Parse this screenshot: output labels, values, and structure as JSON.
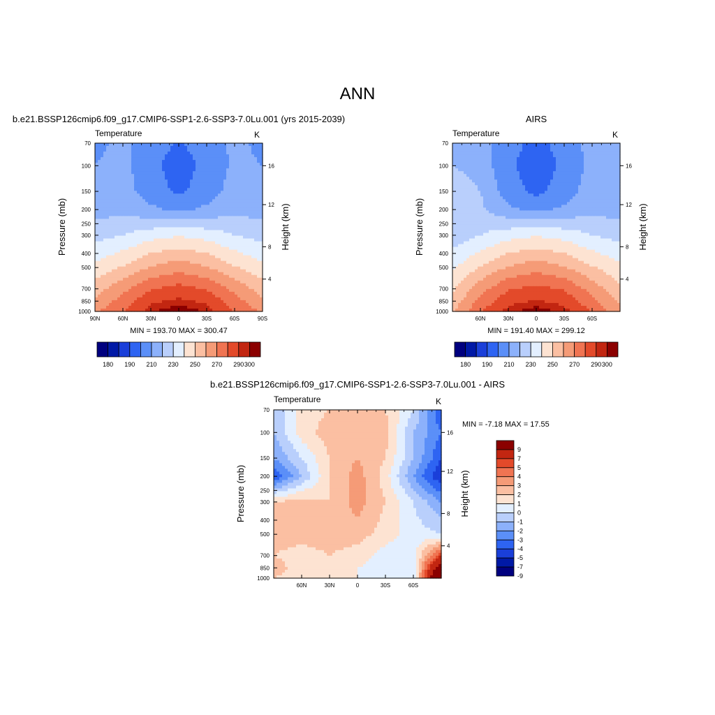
{
  "figure": {
    "title": "ANN",
    "contour_colors": [
      "#00007f",
      "#0019a6",
      "#1a3fd9",
      "#2e64f2",
      "#5b8ff8",
      "#8cb1fb",
      "#b9cffc",
      "#e3efff",
      "#fde3d2",
      "#fbbfa2",
      "#f59b77",
      "#f07452",
      "#e34a2a",
      "#c22611",
      "#8b0000"
    ]
  },
  "panels": {
    "model": {
      "title": "b.e21.BSSP126cmip6.f09_g17.CMIP6-SSP1-2.6-SSP3-7.0Lu.001 (yrs 2015-2039)",
      "var_label": "Temperature",
      "units": "K",
      "stats": "MIN = 193.70  MAX = 300.47",
      "ylabel_left": "Pressure (mb)",
      "ylabel_right": "Height (km)",
      "pressure_ticks": [
        "70",
        "100",
        "150",
        "200",
        "250",
        "300",
        "400",
        "500",
        "700",
        "850",
        "1000"
      ],
      "height_ticks": [
        "16",
        "12",
        "8",
        "4"
      ],
      "lat_ticks": [
        "90N",
        "60N",
        "30N",
        "0",
        "30S",
        "60S",
        "90S"
      ],
      "colorbar_labels": [
        "180",
        "190",
        "210",
        "230",
        "250",
        "270",
        "290",
        "300"
      ]
    },
    "obs": {
      "title": "AIRS",
      "var_label": "Temperature",
      "units": "K",
      "stats": "MIN = 191.40  MAX = 299.12",
      "ylabel_left": "Pressure (mb)",
      "ylabel_right": "Height (km)",
      "pressure_ticks": [
        "70",
        "100",
        "150",
        "200",
        "250",
        "300",
        "400",
        "500",
        "700",
        "850",
        "1000"
      ],
      "height_ticks": [
        "16",
        "12",
        "8",
        "4"
      ],
      "lat_ticks": [
        "60N",
        "30N",
        "0",
        "30S",
        "60S"
      ],
      "colorbar_labels": [
        "180",
        "190",
        "210",
        "230",
        "250",
        "270",
        "290",
        "300"
      ]
    },
    "diff": {
      "title": "b.e21.BSSP126cmip6.f09_g17.CMIP6-SSP1-2.6-SSP3-7.0Lu.001 - AIRS",
      "var_label": "Temperature",
      "units": "K",
      "stats": "MIN =  -7.18  MAX =  17.55",
      "ylabel_left": "Pressure (mb)",
      "ylabel_right": "Height (km)",
      "pressure_ticks": [
        "70",
        "100",
        "150",
        "200",
        "250",
        "300",
        "400",
        "500",
        "700",
        "850",
        "1000"
      ],
      "height_ticks": [
        "16",
        "12",
        "8",
        "4"
      ],
      "lat_ticks": [
        "60N",
        "30N",
        "0",
        "30S",
        "60S"
      ],
      "colorbar_labels": [
        "9",
        "7",
        "5",
        "4",
        "3",
        "2",
        "1",
        "0",
        "-1",
        "-2",
        "-3",
        "-4",
        "-5",
        "-7",
        "-9"
      ]
    }
  },
  "chart_data": [
    {
      "type": "heatmap",
      "title": "Temperature",
      "units": "K",
      "xlabel": "",
      "ylabel": "Pressure (mb)",
      "y2label": "Height (km)",
      "xlim": [
        90,
        -90
      ],
      "ylim_pressure": [
        1000,
        70
      ],
      "log_pressure": true,
      "levels": [
        180,
        185,
        190,
        200,
        210,
        220,
        230,
        240,
        250,
        260,
        270,
        280,
        290,
        295,
        300
      ],
      "min": 193.7,
      "max": 300.47,
      "lat": [
        90,
        60,
        30,
        0,
        -30,
        -60,
        -90
      ],
      "pressure": [
        70,
        100,
        150,
        200,
        300,
        500,
        700,
        850,
        1000
      ],
      "values": [
        [
          208,
          212,
          205,
          199,
          205,
          212,
          208
        ],
        [
          210,
          213,
          203,
          195,
          203,
          212,
          210
        ],
        [
          213,
          214,
          205,
          198,
          205,
          214,
          213
        ],
        [
          216,
          217,
          212,
          208,
          212,
          217,
          216
        ],
        [
          226,
          230,
          236,
          239,
          236,
          230,
          226
        ],
        [
          243,
          251,
          261,
          266,
          261,
          251,
          243
        ],
        [
          255,
          267,
          279,
          284,
          279,
          267,
          255
        ],
        [
          262,
          274,
          288,
          292,
          288,
          274,
          262
        ],
        [
          268,
          280,
          294,
          300,
          294,
          280,
          268
        ]
      ]
    },
    {
      "type": "heatmap",
      "title": "Temperature",
      "units": "K",
      "xlabel": "",
      "ylabel": "Pressure (mb)",
      "y2label": "Height (km)",
      "xlim": [
        90,
        -90
      ],
      "ylim_pressure": [
        1000,
        70
      ],
      "log_pressure": true,
      "levels": [
        180,
        185,
        190,
        200,
        210,
        220,
        230,
        240,
        250,
        260,
        270,
        280,
        290,
        295,
        300
      ],
      "min": 191.4,
      "max": 299.12,
      "lat": [
        90,
        60,
        30,
        0,
        -30,
        -60,
        -90
      ],
      "pressure": [
        70,
        100,
        150,
        200,
        300,
        500,
        700,
        850,
        1000
      ],
      "values": [
        [
          212,
          214,
          204,
          197,
          204,
          214,
          210
        ],
        [
          220,
          216,
          202,
          194,
          202,
          213,
          212
        ],
        [
          226,
          220,
          205,
          197,
          205,
          215,
          214
        ],
        [
          227,
          222,
          212,
          207,
          212,
          217,
          216
        ],
        [
          224,
          230,
          236,
          239,
          236,
          230,
          226
        ],
        [
          238,
          251,
          261,
          266,
          261,
          251,
          243
        ],
        [
          248,
          266,
          279,
          283,
          279,
          266,
          252
        ],
        [
          254,
          273,
          287,
          291,
          287,
          273,
          258
        ],
        [
          258,
          279,
          293,
          299,
          293,
          279,
          262
        ]
      ]
    },
    {
      "type": "heatmap",
      "title": "Temperature",
      "units": "K",
      "xlabel": "",
      "ylabel": "Pressure (mb)",
      "y2label": "Height (km)",
      "xlim": [
        90,
        -90
      ],
      "ylim_pressure": [
        1000,
        70
      ],
      "log_pressure": true,
      "levels": [
        -9,
        -7,
        -5,
        -4,
        -3,
        -2,
        -1,
        0,
        1,
        2,
        3,
        4,
        5,
        7,
        9
      ],
      "min": -7.18,
      "max": 17.55,
      "lat": [
        90,
        60,
        30,
        0,
        -30,
        -60,
        -90
      ],
      "pressure": [
        70,
        100,
        150,
        200,
        300,
        500,
        700,
        850,
        1000
      ],
      "values": [
        [
          -2,
          0.5,
          1,
          2,
          1,
          -1,
          -5
        ],
        [
          -2,
          0.5,
          1.5,
          2,
          1.5,
          -2,
          -4
        ],
        [
          -3,
          -1,
          1,
          2,
          1,
          -2,
          -5
        ],
        [
          -5,
          -2,
          1,
          2.5,
          0.5,
          -3,
          -6
        ],
        [
          1,
          1.5,
          1,
          2.5,
          1,
          -1,
          -3
        ],
        [
          1.5,
          1.5,
          1.5,
          1.5,
          0.5,
          -0.5,
          -1
        ],
        [
          1,
          0.5,
          1,
          0.5,
          -0.5,
          -0.5,
          5
        ],
        [
          1.5,
          0.5,
          0.5,
          0,
          -0.5,
          -0.5,
          9
        ],
        [
          1,
          0.5,
          0.5,
          0,
          -0.5,
          -1,
          12
        ]
      ]
    }
  ]
}
